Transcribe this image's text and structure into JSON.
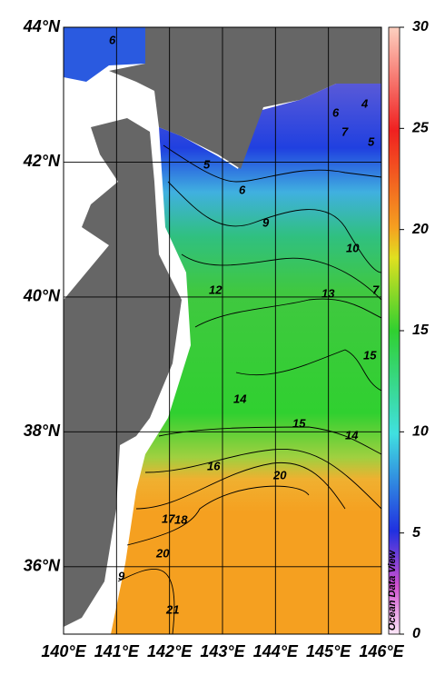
{
  "map": {
    "lonlim": [
      140,
      146
    ],
    "latlim": [
      35,
      44
    ],
    "lon_ticks": [
      {
        "value": 140,
        "label": "140°E"
      },
      {
        "value": 141,
        "label": "141°E"
      },
      {
        "value": 142,
        "label": "142°E"
      },
      {
        "value": 143,
        "label": "143°E"
      },
      {
        "value": 144,
        "label": "144°E"
      },
      {
        "value": 145,
        "label": "145°E"
      },
      {
        "value": 146,
        "label": "146°E"
      }
    ],
    "lat_ticks": [
      {
        "value": 44,
        "label": "44°N"
      },
      {
        "value": 42,
        "label": "42°N"
      },
      {
        "value": 40,
        "label": "40°N"
      },
      {
        "value": 38,
        "label": "38°N"
      },
      {
        "value": 36,
        "label": "36°N"
      }
    ],
    "colorbar": {
      "lim": [
        0,
        30
      ],
      "ticks": [
        0,
        5,
        10,
        15,
        20,
        25,
        30
      ]
    },
    "contour_labels": [
      "6",
      "4",
      "6",
      "7",
      "5",
      "5",
      "6",
      "9",
      "10",
      "7",
      "13",
      "12",
      "15",
      "14",
      "15",
      "14",
      "16",
      "20",
      "17",
      "18",
      "20",
      "9",
      "21"
    ],
    "watermark": "Ocean Data View"
  }
}
